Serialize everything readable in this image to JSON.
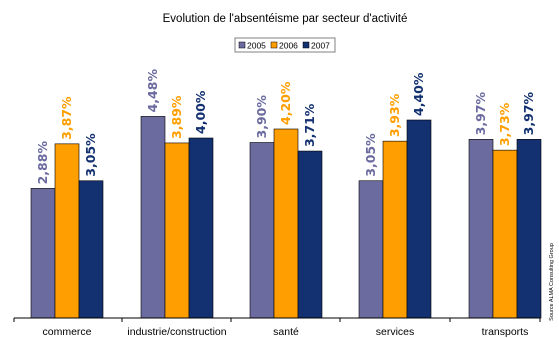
{
  "chart_data": {
    "type": "bar",
    "title": "Evolution de l'absentéisme par secteur d'activité",
    "categories": [
      "commerce",
      "industrie/construction",
      "santé",
      "services",
      "transports"
    ],
    "series": [
      {
        "name": "2005",
        "color": "#6b6b9f",
        "values": [
          2.88,
          4.48,
          3.9,
          3.05,
          3.97
        ],
        "labels": [
          "2,88%",
          "4,48%",
          "3,90%",
          "3,05%",
          "3,97%"
        ]
      },
      {
        "name": "2006",
        "color": "#ff9e00",
        "values": [
          3.87,
          3.89,
          4.2,
          3.93,
          3.73
        ],
        "labels": [
          "3,87%",
          "3,89%",
          "4,20%",
          "3,93%",
          "3,73%"
        ]
      },
      {
        "name": "2007",
        "color": "#133170",
        "values": [
          3.05,
          4.0,
          3.71,
          4.4,
          3.97
        ],
        "labels": [
          "3,05%",
          "4,00%",
          "3,71%",
          "4,40%",
          "3,97%"
        ]
      }
    ],
    "ylim": [
      0,
      5.2
    ],
    "grid": false,
    "legend_position": "top-center",
    "source": "Source ALMA Consulting Group"
  }
}
